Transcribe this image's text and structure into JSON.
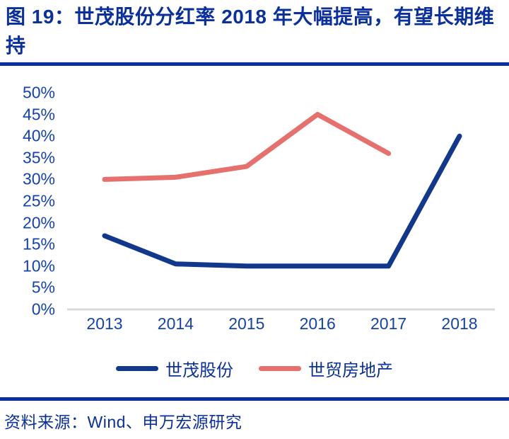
{
  "figure": {
    "title": "图 19：世茂股份分红率 2018 年大幅提高，有望长期维持",
    "source": "资料来源：Wind、申万宏源研究"
  },
  "theme": {
    "title_color": "#0a2f9e",
    "tick_label_color": "#1443b0",
    "rule_color": "#0a2f9e",
    "baseline_color": "#d9d9d9",
    "background": "#ffffff"
  },
  "chart_data": {
    "type": "line",
    "title": "世茂股份分红率 2018 年大幅提高，有望长期维持",
    "x": [
      "2013",
      "2014",
      "2015",
      "2016",
      "2017",
      "2018"
    ],
    "series": [
      {
        "name": "世茂股份",
        "color": "#12388e",
        "values": [
          17,
          10.5,
          10,
          10,
          10,
          40
        ]
      },
      {
        "name": "世贸房地产",
        "color": "#e5706d",
        "values": [
          30,
          30.5,
          33,
          45,
          36,
          null
        ]
      }
    ],
    "ylabel": "",
    "xlabel": "",
    "ylim": [
      0,
      50
    ],
    "ytick_step": 5,
    "ytick_labels_top_to_bottom": [
      "50%",
      "45%",
      "40%",
      "35%",
      "30%",
      "25%",
      "20%",
      "15%",
      "10%",
      "5%",
      "0%"
    ],
    "grid": false,
    "legend_position": "bottom",
    "axis_line": "x-only"
  }
}
